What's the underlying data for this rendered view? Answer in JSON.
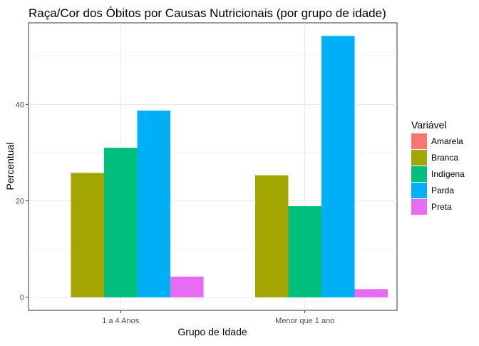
{
  "chart_data": {
    "type": "bar",
    "title": "Raça/Cor dos Óbitos por Causas Nutricionais (por grupo de idade)",
    "xlabel": "Grupo de Idade",
    "ylabel": "Percentual",
    "categories": [
      "1 a 4 Anos",
      "Menor que 1 ano"
    ],
    "series": [
      {
        "name": "Amarela",
        "color": "#F8766D",
        "values": [
          0,
          0
        ]
      },
      {
        "name": "Branca",
        "color": "#A3A500",
        "values": [
          25.8,
          25.3
        ]
      },
      {
        "name": "Indígena",
        "color": "#00BF7D",
        "values": [
          31.0,
          18.9
        ]
      },
      {
        "name": "Parda",
        "color": "#00B0F6",
        "values": [
          38.7,
          54.2
        ]
      },
      {
        "name": "Preta",
        "color": "#E76BF3",
        "values": [
          4.3,
          1.7
        ]
      }
    ],
    "ylim": [
      -2.7,
      56.9
    ],
    "yticks": [
      0,
      20,
      40
    ],
    "legend_title": "Variável",
    "legend_position": "right",
    "grid": true
  }
}
